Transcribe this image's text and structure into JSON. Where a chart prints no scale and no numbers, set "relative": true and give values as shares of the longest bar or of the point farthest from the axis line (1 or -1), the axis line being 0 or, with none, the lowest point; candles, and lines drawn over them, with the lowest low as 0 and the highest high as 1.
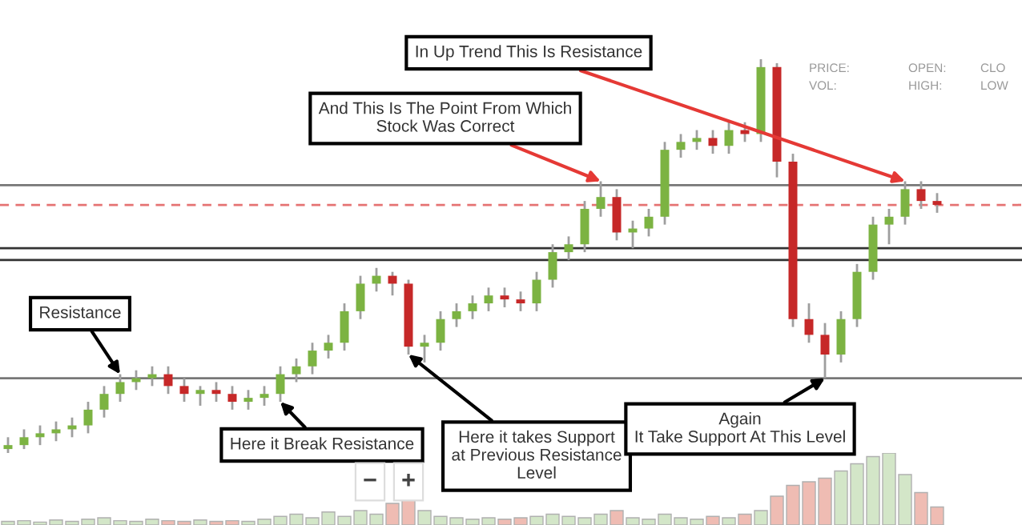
{
  "chart_data": [
    {
      "type": "candlestick",
      "relative": true,
      "categories": [
        null,
        null,
        null,
        null,
        null,
        null,
        null,
        null,
        null,
        null,
        null,
        null,
        null,
        null,
        null,
        null,
        null,
        null,
        null,
        null,
        null,
        null,
        null,
        null,
        null,
        null,
        null,
        null,
        null,
        null,
        null,
        null,
        null,
        null,
        null,
        null,
        null,
        null,
        null,
        null,
        null,
        null,
        null,
        null,
        null,
        null,
        null,
        null,
        null,
        null,
        null,
        null,
        null,
        null,
        null,
        null,
        null,
        null,
        null
      ],
      "ohlc": [
        [
          0.01,
          0.04,
          0,
          0.02
        ],
        [
          0.02,
          0.06,
          0.01,
          0.04
        ],
        [
          0.04,
          0.07,
          0.02,
          0.05
        ],
        [
          0.05,
          0.08,
          0.03,
          0.06
        ],
        [
          0.06,
          0.09,
          0.04,
          0.07
        ],
        [
          0.07,
          0.13,
          0.05,
          0.11
        ],
        [
          0.11,
          0.17,
          0.09,
          0.15
        ],
        [
          0.15,
          0.2,
          0.13,
          0.18
        ],
        [
          0.18,
          0.21,
          0.16,
          0.19
        ],
        [
          0.19,
          0.22,
          0.17,
          0.2
        ],
        [
          0.2,
          0.22,
          0.15,
          0.17
        ],
        [
          0.17,
          0.19,
          0.13,
          0.15
        ],
        [
          0.15,
          0.17,
          0.12,
          0.16
        ],
        [
          0.16,
          0.18,
          0.13,
          0.15
        ],
        [
          0.15,
          0.17,
          0.11,
          0.13
        ],
        [
          0.13,
          0.16,
          0.11,
          0.14
        ],
        [
          0.14,
          0.17,
          0.12,
          0.15
        ],
        [
          0.15,
          0.22,
          0.13,
          0.2
        ],
        [
          0.2,
          0.24,
          0.18,
          0.22
        ],
        [
          0.22,
          0.28,
          0.2,
          0.26
        ],
        [
          0.26,
          0.3,
          0.24,
          0.28
        ],
        [
          0.28,
          0.38,
          0.26,
          0.36
        ],
        [
          0.36,
          0.45,
          0.34,
          0.43
        ],
        [
          0.43,
          0.47,
          0.41,
          0.45
        ],
        [
          0.45,
          0.46,
          0.4,
          0.43
        ],
        [
          0.43,
          0.44,
          0.25,
          0.27
        ],
        [
          0.27,
          0.3,
          0.23,
          0.28
        ],
        [
          0.28,
          0.36,
          0.26,
          0.34
        ],
        [
          0.34,
          0.38,
          0.32,
          0.36
        ],
        [
          0.36,
          0.4,
          0.34,
          0.38
        ],
        [
          0.38,
          0.42,
          0.36,
          0.4
        ],
        [
          0.4,
          0.42,
          0.37,
          0.39
        ],
        [
          0.39,
          0.41,
          0.36,
          0.38
        ],
        [
          0.38,
          0.46,
          0.36,
          0.44
        ],
        [
          0.44,
          0.53,
          0.42,
          0.51
        ],
        [
          0.51,
          0.55,
          0.49,
          0.53
        ],
        [
          0.53,
          0.64,
          0.51,
          0.62
        ],
        [
          0.62,
          0.69,
          0.6,
          0.65
        ],
        [
          0.65,
          0.67,
          0.54,
          0.56
        ],
        [
          0.56,
          0.59,
          0.52,
          0.57
        ],
        [
          0.57,
          0.62,
          0.55,
          0.6
        ],
        [
          0.6,
          0.79,
          0.58,
          0.77
        ],
        [
          0.77,
          0.81,
          0.75,
          0.79
        ],
        [
          0.79,
          0.82,
          0.77,
          0.8
        ],
        [
          0.8,
          0.82,
          0.76,
          0.78
        ],
        [
          0.78,
          0.84,
          0.76,
          0.82
        ],
        [
          0.82,
          0.84,
          0.79,
          0.81
        ],
        [
          0.81,
          1.0,
          0.79,
          0.98
        ],
        [
          0.98,
          0.99,
          0.7,
          0.74
        ],
        [
          0.74,
          0.76,
          0.32,
          0.34
        ],
        [
          0.34,
          0.38,
          0.28,
          0.3
        ],
        [
          0.3,
          0.33,
          0.19,
          0.25
        ],
        [
          0.25,
          0.36,
          0.23,
          0.34
        ],
        [
          0.34,
          0.48,
          0.32,
          0.46
        ],
        [
          0.46,
          0.6,
          0.44,
          0.58
        ],
        [
          0.58,
          0.62,
          0.53,
          0.6
        ],
        [
          0.6,
          0.69,
          0.58,
          0.67
        ],
        [
          0.67,
          0.69,
          0.62,
          0.64
        ],
        [
          0.64,
          0.66,
          0.61,
          0.63
        ]
      ],
      "colors": [
        "#7cb342",
        "#7cb342",
        "#7cb342",
        "#7cb342",
        "#7cb342",
        "#7cb342",
        "#7cb342",
        "#7cb342",
        "#7cb342",
        "#7cb342",
        "#c62828",
        "#c62828",
        "#7cb342",
        "#c62828",
        "#c62828",
        "#7cb342",
        "#7cb342",
        "#7cb342",
        "#7cb342",
        "#7cb342",
        "#7cb342",
        "#7cb342",
        "#7cb342",
        "#7cb342",
        "#c62828",
        "#c62828",
        "#7cb342",
        "#7cb342",
        "#7cb342",
        "#7cb342",
        "#7cb342",
        "#c62828",
        "#c62828",
        "#7cb342",
        "#7cb342",
        "#7cb342",
        "#7cb342",
        "#7cb342",
        "#c62828",
        "#7cb342",
        "#7cb342",
        "#7cb342",
        "#7cb342",
        "#7cb342",
        "#c62828",
        "#7cb342",
        "#c62828",
        "#7cb342",
        "#c62828",
        "#c62828",
        "#c62828",
        "#c62828",
        "#7cb342",
        "#7cb342",
        "#7cb342",
        "#7cb342",
        "#7cb342",
        "#c62828",
        "#c62828"
      ],
      "ref_lines": [
        {
          "axis": "y",
          "value": 0.68,
          "color": "#777777",
          "line_style": "solid"
        },
        {
          "axis": "y",
          "value": 0.63,
          "color": "#e57373",
          "line_style": "dashed"
        },
        {
          "axis": "y",
          "value": 0.52,
          "color": "#333333",
          "line_style": "solid"
        },
        {
          "axis": "y",
          "value": 0.49,
          "color": "#333333",
          "line_style": "solid"
        },
        {
          "axis": "y",
          "value": 0.19,
          "color": "#777777",
          "line_style": "solid"
        }
      ],
      "annotations": [
        "Resistance",
        "Here it Break Resistance",
        "Here it takes Support\nat Previous Resistance\nLevel",
        "And This Is The Point From Which\nStock Was Correct",
        "In Up Trend This Is Resistance",
        "Again\nIt Take Support At This Level",
        "PRICE:",
        "VOL:",
        "OPEN:",
        "HIGH:",
        "CLO",
        "LOW",
        "−",
        "+"
      ]
    },
    {
      "type": "bar",
      "relative": true,
      "categories": [
        null,
        null,
        null,
        null,
        null,
        null,
        null,
        null,
        null,
        null,
        null,
        null,
        null,
        null,
        null,
        null,
        null,
        null,
        null,
        null,
        null,
        null,
        null,
        null,
        null,
        null,
        null,
        null,
        null,
        null,
        null,
        null,
        null,
        null,
        null,
        null,
        null,
        null,
        null,
        null,
        null,
        null,
        null,
        null,
        null,
        null,
        null,
        null,
        null,
        null,
        null,
        null,
        null,
        null,
        null,
        null,
        null,
        null,
        null
      ],
      "values": [
        0.05,
        0.06,
        0.04,
        0.07,
        0.05,
        0.08,
        0.1,
        0.06,
        0.05,
        0.08,
        0.06,
        0.05,
        0.07,
        0.05,
        0.06,
        0.05,
        0.08,
        0.12,
        0.15,
        0.1,
        0.18,
        0.12,
        0.2,
        0.15,
        0.3,
        0.35,
        0.2,
        0.12,
        0.1,
        0.08,
        0.1,
        0.08,
        0.1,
        0.12,
        0.15,
        0.12,
        0.1,
        0.15,
        0.2,
        0.1,
        0.08,
        0.15,
        0.1,
        0.08,
        0.12,
        0.1,
        0.15,
        0.2,
        0.4,
        0.55,
        0.6,
        0.65,
        0.75,
        0.85,
        0.95,
        1.0,
        0.7,
        0.45,
        0.25
      ],
      "colors": [
        "#d3e6c8",
        "#d3e6c8",
        "#d3e6c8",
        "#d3e6c8",
        "#d3e6c8",
        "#d3e6c8",
        "#d3e6c8",
        "#d3e6c8",
        "#d3e6c8",
        "#d3e6c8",
        "#efbcb3",
        "#efbcb3",
        "#d3e6c8",
        "#efbcb3",
        "#efbcb3",
        "#d3e6c8",
        "#d3e6c8",
        "#d3e6c8",
        "#d3e6c8",
        "#d3e6c8",
        "#d3e6c8",
        "#d3e6c8",
        "#d3e6c8",
        "#d3e6c8",
        "#efbcb3",
        "#efbcb3",
        "#d3e6c8",
        "#d3e6c8",
        "#d3e6c8",
        "#d3e6c8",
        "#d3e6c8",
        "#efbcb3",
        "#efbcb3",
        "#d3e6c8",
        "#d3e6c8",
        "#d3e6c8",
        "#d3e6c8",
        "#d3e6c8",
        "#efbcb3",
        "#d3e6c8",
        "#d3e6c8",
        "#d3e6c8",
        "#d3e6c8",
        "#d3e6c8",
        "#efbcb3",
        "#d3e6c8",
        "#efbcb3",
        "#d3e6c8",
        "#efbcb3",
        "#efbcb3",
        "#efbcb3",
        "#efbcb3",
        "#d3e6c8",
        "#d3e6c8",
        "#d3e6c8",
        "#d3e6c8",
        "#d3e6c8",
        "#efbcb3",
        "#efbcb3"
      ]
    }
  ]
}
